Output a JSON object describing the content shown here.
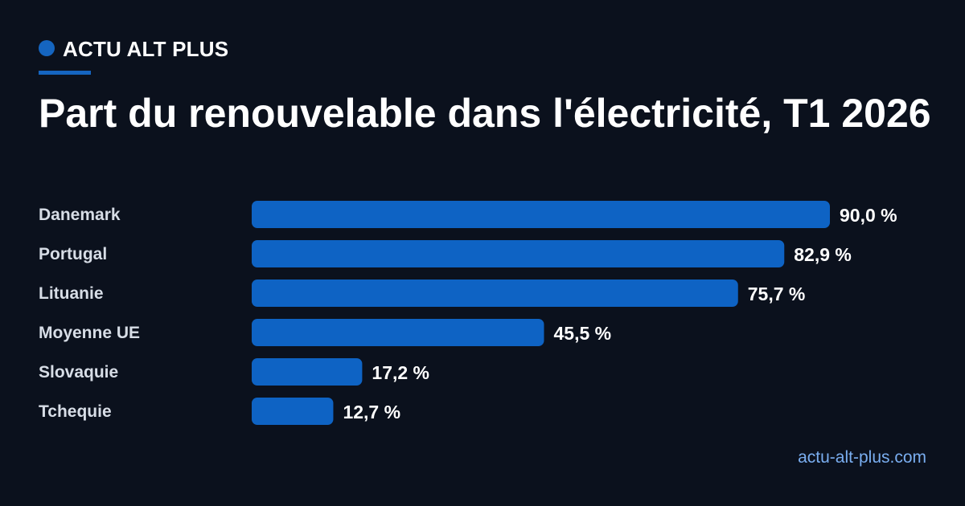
{
  "brand": {
    "name": "ACTU ALT PLUS"
  },
  "footer": {
    "url": "actu-alt-plus.com"
  },
  "colors": {
    "background": "#0b111d",
    "accent": "#1565c0",
    "bar": "#0e63c4",
    "label": "#d7dde6",
    "value": "#ffffff",
    "link": "#7aaef0"
  },
  "chart_data": {
    "type": "bar",
    "orientation": "horizontal",
    "title": "Part du renouvelable dans l'électricité, T1 2026",
    "categories": [
      "Danemark",
      "Portugal",
      "Lituanie",
      "Moyenne UE",
      "Slovaquie",
      "Tchequie"
    ],
    "values": [
      90.0,
      82.9,
      75.7,
      45.5,
      17.2,
      12.7
    ],
    "value_labels": [
      "90,0 %",
      "82,9 %",
      "75,7 %",
      "45,5 %",
      "17,2 %",
      "12,7 %"
    ],
    "unit": "%",
    "xlim": [
      0,
      90
    ],
    "grid": false,
    "legend": "none"
  }
}
